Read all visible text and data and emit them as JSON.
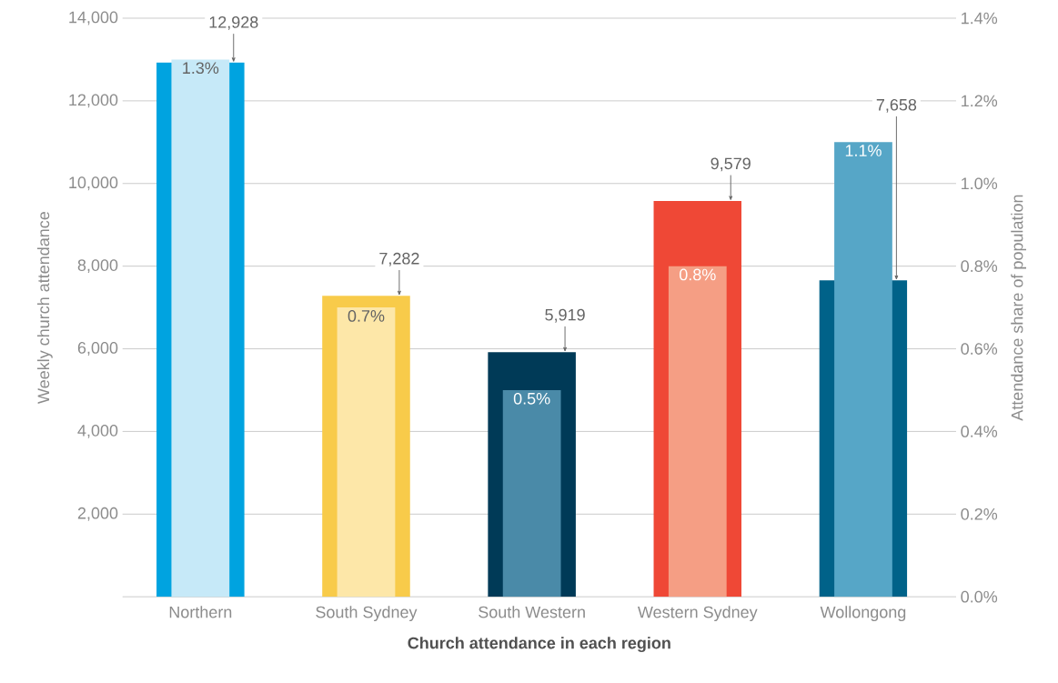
{
  "chart_data": {
    "type": "bar",
    "xlabel": "Church attendance in each region",
    "ylabel": "Weekly church attendance",
    "y2label": "Attendance share of population",
    "categories": [
      "Northern",
      "South Sydney",
      "South Western",
      "Western Sydney",
      "Wollongong"
    ],
    "series": [
      {
        "colors": [
          "#00a3e0",
          "#f8cb4a",
          "#003a57",
          "#ef4836",
          "#006289"
        ],
        "values": [
          12928,
          7282,
          5919,
          9579,
          7658
        ],
        "value_labels": [
          "12,928",
          "7,282",
          "5,919",
          "9,579",
          "7,658"
        ]
      },
      {
        "axis": "y2",
        "colors": [
          "#c6e9f8",
          "#fde7a8",
          "#4a8aa8",
          "#f59e84",
          "#56a6c7"
        ],
        "values": [
          1.3,
          0.7,
          0.5,
          0.8,
          1.1
        ],
        "value_labels": [
          "1.3%",
          "0.7%",
          "0.5%",
          "0.8%",
          "1.1%"
        ]
      }
    ],
    "ylim": [
      0,
      14000
    ],
    "yticks": [
      {
        "value": 0,
        "label": null
      },
      {
        "value": 2000,
        "label": "2,000"
      },
      {
        "value": 4000,
        "label": "4,000"
      },
      {
        "value": 6000,
        "label": "6,000"
      },
      {
        "value": 8000,
        "label": "8,000"
      },
      {
        "value": 10000,
        "label": "10,000"
      },
      {
        "value": 12000,
        "label": "12,000"
      },
      {
        "value": 14000,
        "label": "14,000"
      }
    ],
    "y2lim": [
      0,
      1.4
    ],
    "y2ticks": [
      {
        "value": 0,
        "label": "0.0%"
      },
      {
        "value": 0.2,
        "label": "0.2%"
      },
      {
        "value": 0.4,
        "label": "0.4%"
      },
      {
        "value": 0.6,
        "label": "0.6%"
      },
      {
        "value": 0.8,
        "label": "0.8%"
      },
      {
        "value": 1.0,
        "label": "1.0%"
      },
      {
        "value": 1.2,
        "label": "1.2%"
      },
      {
        "value": 1.4,
        "label": "1.4%"
      }
    ],
    "grid": "y"
  }
}
